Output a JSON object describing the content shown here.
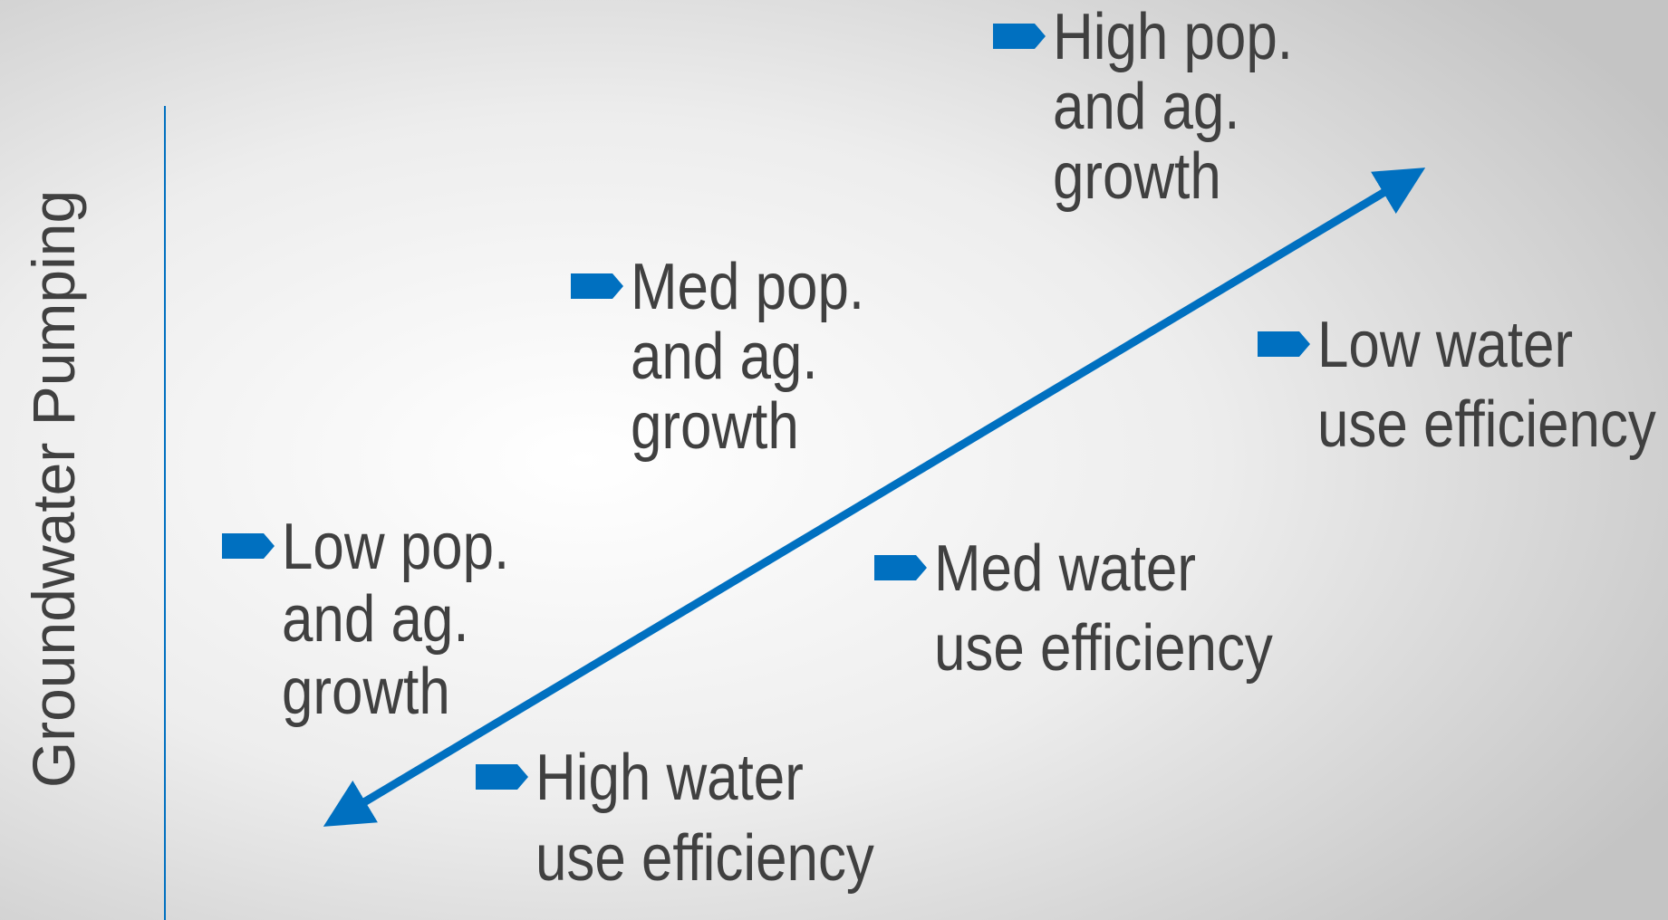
{
  "y_axis": {
    "label": "Groundwater Pumping"
  },
  "items": [
    {
      "lines": [
        "High pop.",
        "and ag.",
        "growth"
      ]
    },
    {
      "lines": [
        "Med pop.",
        "and ag.",
        "growth"
      ]
    },
    {
      "lines": [
        "Low water",
        "use efficiency"
      ]
    },
    {
      "lines": [
        "Low pop.",
        "and ag.",
        "growth"
      ]
    },
    {
      "lines": [
        "Med water",
        "use efficiency"
      ]
    },
    {
      "lines": [
        "High water",
        "use efficiency"
      ]
    }
  ]
}
